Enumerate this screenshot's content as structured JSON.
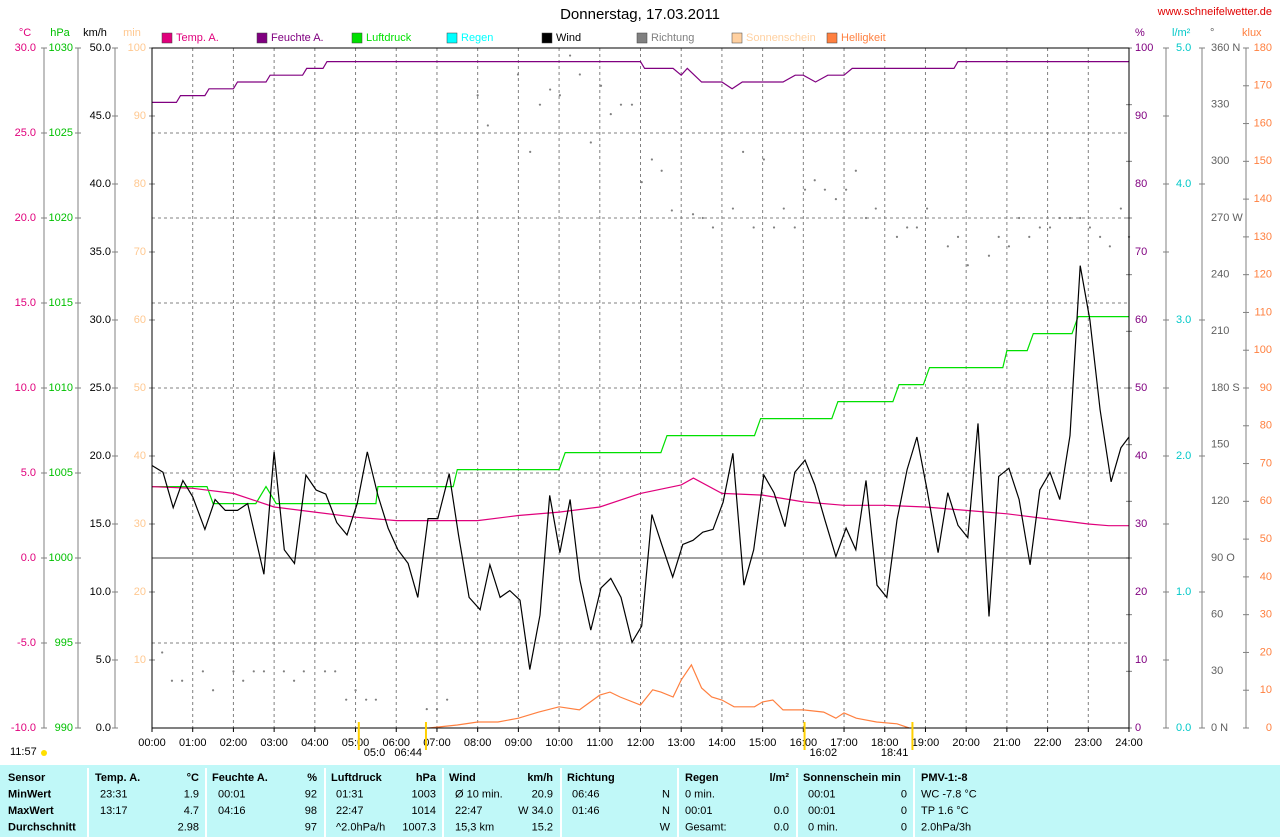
{
  "chart_data": {
    "type": "line",
    "title": "Donnerstag, 17.03.2011",
    "source": "www.schneifelwetter.de",
    "grid": true,
    "xlim": [
      0,
      24
    ],
    "xticks": [
      {
        "value": 0,
        "label": "00:00"
      },
      {
        "value": 1,
        "label": "01:00"
      },
      {
        "value": 2,
        "label": "02:00"
      },
      {
        "value": 3,
        "label": "03:00"
      },
      {
        "value": 4,
        "label": "04:00"
      },
      {
        "value": 5,
        "label": "05:00"
      },
      {
        "value": 6,
        "label": "06:00"
      },
      {
        "value": 7,
        "label": "07:00"
      },
      {
        "value": 8,
        "label": "08:00"
      },
      {
        "value": 9,
        "label": "09:00"
      },
      {
        "value": 10,
        "label": "10:00"
      },
      {
        "value": 11,
        "label": "11:00"
      },
      {
        "value": 12,
        "label": "12:00"
      },
      {
        "value": 13,
        "label": "13:00"
      },
      {
        "value": 14,
        "label": "14:00"
      },
      {
        "value": 15,
        "label": "15:00"
      },
      {
        "value": 16,
        "label": "16:00"
      },
      {
        "value": 17,
        "label": "17:00"
      },
      {
        "value": 18,
        "label": "18:00"
      },
      {
        "value": 19,
        "label": "19:00"
      },
      {
        "value": 20,
        "label": "20:00"
      },
      {
        "value": 21,
        "label": "21:00"
      },
      {
        "value": 22,
        "label": "22:00"
      },
      {
        "value": 23,
        "label": "23:00"
      },
      {
        "value": 24,
        "label": "24:00"
      }
    ],
    "axes": [
      {
        "unit": "°C",
        "color": "#e0007c",
        "lim": [
          -10,
          30
        ],
        "ticks": [
          {
            "value": 30,
            "label": "30.0"
          },
          {
            "value": 25,
            "label": "25.0"
          },
          {
            "value": 20,
            "label": "20.0"
          },
          {
            "value": 15,
            "label": "15.0"
          },
          {
            "value": 10,
            "label": "10.0"
          },
          {
            "value": 5,
            "label": "5.0"
          },
          {
            "value": 0,
            "label": "0.0"
          },
          {
            "value": -5,
            "label": "-5.0"
          },
          {
            "value": -10,
            "label": "-10.0"
          }
        ]
      },
      {
        "unit": "hPa",
        "color": "#00c000",
        "lim": [
          990,
          1030
        ],
        "ticks": [
          1030,
          1025,
          1020,
          1015,
          1010,
          1005,
          1000,
          995,
          990
        ]
      },
      {
        "unit": "km/h",
        "color": "#000000",
        "lim": [
          0,
          50
        ],
        "ticks": [
          {
            "value": 50,
            "label": "50.0"
          },
          {
            "value": 45,
            "label": "45.0"
          },
          {
            "value": 40,
            "label": "40.0"
          },
          {
            "value": 35,
            "label": "35.0"
          },
          {
            "value": 30,
            "label": "30.0"
          },
          {
            "value": 25,
            "label": "25.0"
          },
          {
            "value": 20,
            "label": "20.0"
          },
          {
            "value": 15,
            "label": "15.0"
          },
          {
            "value": 10,
            "label": "10.0"
          },
          {
            "value": 5,
            "label": "5.0"
          },
          {
            "value": 0,
            "label": "0.0"
          }
        ]
      },
      {
        "unit": "min",
        "color": "#ffc890",
        "lim": [
          0,
          100
        ],
        "ticks": [
          100,
          90,
          80,
          70,
          60,
          50,
          40,
          30,
          20,
          10
        ]
      },
      {
        "unit": "%",
        "color": "#800080",
        "lim": [
          0,
          100
        ],
        "ticks": [
          100,
          90,
          80,
          70,
          60,
          50,
          40,
          30,
          20,
          10,
          0
        ]
      },
      {
        "unit": "l/m²",
        "color": "#00c8c8",
        "lim": [
          0,
          5
        ],
        "ticks": [
          {
            "value": 5,
            "label": "5.0"
          },
          {
            "value": 4,
            "label": "4.0"
          },
          {
            "value": 3,
            "label": "3.0"
          },
          {
            "value": 2,
            "label": "2.0"
          },
          {
            "value": 1,
            "label": "1.0"
          },
          {
            "value": 0,
            "label": "0.0"
          }
        ]
      },
      {
        "unit": "°",
        "color": "#606060",
        "lim": [
          0,
          360
        ],
        "ticks": [
          {
            "value": 360,
            "label": "360 N"
          },
          330,
          300,
          {
            "value": 270,
            "label": "270 W"
          },
          240,
          210,
          {
            "value": 180,
            "label": "180 S"
          },
          150,
          120,
          {
            "value": 90,
            "label": "90  O"
          },
          60,
          30,
          {
            "value": 0,
            "label": "0   N"
          }
        ]
      },
      {
        "unit": "klux",
        "color": "#ff8040",
        "lim": [
          0,
          180
        ],
        "ticks": [
          180,
          170,
          160,
          150,
          140,
          130,
          120,
          110,
          100,
          90,
          80,
          70,
          60,
          50,
          40,
          30,
          20,
          10,
          0
        ]
      }
    ],
    "series": [
      {
        "name": "Temp. A.",
        "color": "#e0007c",
        "axis": 0,
        "x": [
          0,
          1,
          2,
          3,
          4,
          5,
          6,
          7,
          8,
          9,
          10,
          11,
          12,
          13,
          13.3,
          14,
          15,
          16,
          17,
          18,
          19,
          20,
          21,
          22,
          23,
          23.5,
          24
        ],
        "values": [
          4.2,
          4.1,
          3.8,
          3.0,
          2.7,
          2.4,
          2.2,
          2.2,
          2.2,
          2.5,
          2.7,
          3.0,
          3.8,
          4.3,
          4.7,
          3.8,
          3.7,
          3.3,
          3.1,
          3.1,
          3.0,
          2.8,
          2.6,
          2.3,
          2.0,
          1.9,
          1.9
        ]
      },
      {
        "name": "Feuchte A.",
        "color": "#800080",
        "axis": 4,
        "x": [
          0,
          0.6,
          0.7,
          1.3,
          1.4,
          2.0,
          2.1,
          2.8,
          2.9,
          3.7,
          3.8,
          4.2,
          4.3,
          12.0,
          12.1,
          12.8,
          13.0,
          13.15,
          13.5,
          14.0,
          14.25,
          14.5,
          15.5,
          15.8,
          16.0,
          16.3,
          16.6,
          17.0,
          17.2,
          19.7,
          19.8,
          24
        ],
        "values": [
          92,
          92,
          93,
          93,
          94,
          94,
          95,
          95,
          96,
          96,
          97,
          97,
          98,
          98,
          97,
          97,
          96,
          97,
          95,
          95,
          94,
          95,
          95,
          96,
          96,
          95,
          96,
          96,
          97,
          97,
          98,
          98
        ]
      },
      {
        "name": "Luftdruck",
        "color": "#00e000",
        "axis": 1,
        "x": [
          0,
          1.35,
          1.5,
          2.55,
          2.8,
          3.05,
          5.5,
          5.55,
          7.4,
          7.5,
          10.0,
          10.15,
          12.5,
          12.65,
          14.8,
          14.95,
          16.7,
          16.85,
          18.2,
          18.35,
          18.95,
          19.1,
          20.9,
          21.0,
          21.5,
          21.65,
          22.6,
          22.75,
          24
        ],
        "values": [
          1004.2,
          1004.2,
          1003.2,
          1003.2,
          1004.2,
          1003.2,
          1003.2,
          1004.2,
          1004.2,
          1005.2,
          1005.2,
          1006.2,
          1006.2,
          1007.2,
          1007.2,
          1008.2,
          1008.2,
          1009.2,
          1009.2,
          1010.2,
          1010.2,
          1011.2,
          1011.2,
          1012.2,
          1012.2,
          1013.2,
          1013.2,
          1014.2,
          1014.2
        ]
      },
      {
        "name": "Regen",
        "color": "#00ffff",
        "axis": 5,
        "x": [],
        "values": []
      },
      {
        "name": "Wind",
        "color": "#000000",
        "axis": 2,
        "x": [
          0,
          0.27,
          0.52,
          0.76,
          1.0,
          1.3,
          1.55,
          1.8,
          2.1,
          2.35,
          2.75,
          3.0,
          3.25,
          3.5,
          3.78,
          4.03,
          4.27,
          4.54,
          4.79,
          5.04,
          5.29,
          5.55,
          5.8,
          6.04,
          6.29,
          6.53,
          6.78,
          7.02,
          7.3,
          7.53,
          7.79,
          8.06,
          8.3,
          8.55,
          8.79,
          9.04,
          9.28,
          9.53,
          9.77,
          10.02,
          10.27,
          10.51,
          10.78,
          11.03,
          11.27,
          11.52,
          11.79,
          12.03,
          12.28,
          12.52,
          12.79,
          13.04,
          13.29,
          13.53,
          13.78,
          14.03,
          14.27,
          14.54,
          14.78,
          15.03,
          15.28,
          15.55,
          15.79,
          16.04,
          16.28,
          16.53,
          16.8,
          17.05,
          17.29,
          17.54,
          17.81,
          18.05,
          18.3,
          18.55,
          18.79,
          19.04,
          19.31,
          19.55,
          19.8,
          20.04,
          20.29,
          20.56,
          20.8,
          21.05,
          21.3,
          21.57,
          21.81,
          22.06,
          22.3,
          22.55,
          22.8,
          23.04,
          23.29,
          23.56,
          23.8,
          24
        ],
        "values": [
          19.3,
          18.8,
          16.2,
          18.2,
          17.0,
          14.6,
          16.8,
          16.0,
          16.0,
          16.5,
          11.3,
          20.3,
          13.1,
          12.1,
          18.6,
          17.5,
          17.2,
          15.1,
          14.2,
          16.5,
          20.3,
          17.1,
          14.7,
          13.1,
          12.1,
          9.6,
          15.4,
          15.4,
          18.7,
          14.2,
          9.6,
          8.7,
          12.0,
          9.6,
          10.1,
          9.4,
          4.3,
          8.3,
          17.1,
          12.9,
          16.8,
          10.9,
          7.2,
          10.3,
          11.0,
          9.6,
          6.3,
          7.5,
          15.7,
          13.5,
          11.1,
          13.5,
          13.8,
          14.4,
          14.6,
          16.6,
          20.2,
          10.5,
          13.1,
          18.6,
          17.3,
          14.8,
          18.8,
          19.7,
          17.9,
          15.3,
          12.6,
          14.7,
          13.1,
          18.2,
          10.5,
          9.6,
          15.3,
          19.0,
          21.4,
          17.5,
          12.9,
          17.3,
          14.9,
          14.0,
          22.4,
          8.2,
          18.5,
          19.1,
          16.8,
          12.0,
          17.5,
          18.8,
          16.8,
          21.5,
          34.0,
          30.0,
          23.4,
          18.1,
          20.6,
          21.4
        ]
      },
      {
        "name": "Richtung",
        "color": "#808080",
        "axis": 6,
        "style": "dots",
        "x": [
          0.25,
          0.49,
          0.74,
          1.25,
          1.5,
          2.0,
          2.24,
          2.5,
          2.75,
          3.24,
          3.49,
          3.73,
          4.25,
          4.5,
          4.77,
          5.0,
          5.26,
          5.5,
          6.75,
          7.0,
          7.25,
          8.0,
          8.25,
          8.99,
          9.29,
          9.53,
          9.78,
          10.02,
          10.27,
          10.51,
          10.78,
          11.03,
          11.27,
          11.52,
          11.79,
          12.03,
          12.28,
          12.52,
          12.77,
          13.29,
          13.53,
          13.78,
          14.27,
          14.52,
          14.78,
          15.03,
          15.28,
          15.52,
          15.79,
          16.04,
          16.28,
          16.53,
          16.8,
          17.05,
          17.29,
          17.54,
          17.78,
          18.3,
          18.55,
          18.79,
          19.04,
          19.55,
          19.8,
          20.04,
          20.56,
          20.8,
          21.05,
          21.3,
          21.55,
          21.81,
          22.06,
          22.3,
          22.55,
          22.8,
          23.04,
          23.29,
          23.53,
          23.8,
          24
        ],
        "values": [
          40,
          25,
          25,
          30,
          20,
          30,
          25,
          30,
          30,
          30,
          25,
          30,
          30,
          30,
          15,
          20,
          15,
          15,
          10,
          10,
          15,
          335,
          319,
          346,
          305,
          330,
          338,
          335,
          356,
          346,
          310,
          340,
          325,
          330,
          330,
          289,
          301,
          295,
          274,
          272,
          270,
          265,
          275,
          305,
          265,
          301,
          265,
          275,
          265,
          285,
          290,
          285,
          280,
          285,
          295,
          270,
          275,
          260,
          265,
          265,
          275,
          255,
          260,
          245,
          250,
          260,
          255,
          270,
          260,
          265,
          265,
          270,
          270,
          270,
          265,
          260,
          255,
          275,
          260
        ]
      },
      {
        "name": "Sonnenschein",
        "color": "#ffd0a0",
        "axis": 3,
        "x": [],
        "values": []
      },
      {
        "name": "Helligkeit",
        "color": "#ff8040",
        "axis": 7,
        "x": [
          6.8,
          7.5,
          8.0,
          8.5,
          9.0,
          9.5,
          10.0,
          10.5,
          11.0,
          11.25,
          11.5,
          12.0,
          12.3,
          12.5,
          12.8,
          13.0,
          13.25,
          13.5,
          13.75,
          14.0,
          14.3,
          14.8,
          15.0,
          15.25,
          15.5,
          16.0,
          16.5,
          16.8,
          17.0,
          17.3,
          17.8,
          18.3,
          18.6
        ],
        "values": [
          0,
          0.8,
          1.6,
          1.6,
          2.6,
          4.2,
          5.6,
          4.8,
          8.7,
          9.5,
          8.2,
          6.1,
          10.1,
          9.5,
          8.2,
          12.7,
          16.7,
          10.6,
          8.2,
          7.4,
          5.6,
          5.6,
          6.9,
          7.4,
          4.8,
          4.8,
          4.2,
          2.6,
          4.0,
          2.6,
          1.6,
          1.1,
          0
        ]
      }
    ],
    "daylength": "11:57",
    "annotations": [
      {
        "x": 5.08,
        "label": "05:0",
        "side": "right"
      },
      {
        "x": 6.73,
        "label": "06:44",
        "side": "left"
      },
      {
        "x": 16.03,
        "label": "16:02",
        "side": "right"
      },
      {
        "x": 18.68,
        "label": "18:41",
        "side": "left"
      }
    ]
  },
  "table": {
    "rows": [
      [
        "Sensor",
        "Temp. A.",
        "°C",
        "Feuchte A.",
        "%",
        "Luftdruck",
        "hPa",
        "Wind",
        "km/h",
        "Richtung",
        null,
        "Regen",
        "l/m²",
        "Sonnenschein min",
        null,
        "PMV-1:-8"
      ],
      [
        "MinWert",
        "23:31",
        "1.9",
        "00:01",
        "92",
        "01:31",
        "1003",
        "Ø 10 min.",
        "20.9",
        "06:46",
        "N",
        "0 min.",
        null,
        "00:01",
        "0",
        "WC -7.8 °C"
      ],
      [
        "MaxWert",
        "13:17",
        "4.7",
        "04:16",
        "98",
        "22:47",
        "1014",
        "22:47",
        "W 34.0",
        "01:46",
        "N",
        "00:01",
        "0.0",
        "00:01",
        "0",
        "TP 1.6 °C"
      ],
      [
        "Durchschnitt",
        null,
        "2.98",
        null,
        "97",
        "^2.0hPa/h",
        "1007.3",
        "15,3 km",
        "15.2",
        null,
        "W",
        "Gesamt:",
        "0.0",
        "0 min.",
        "0",
        "2.0hPa/3h"
      ]
    ]
  }
}
